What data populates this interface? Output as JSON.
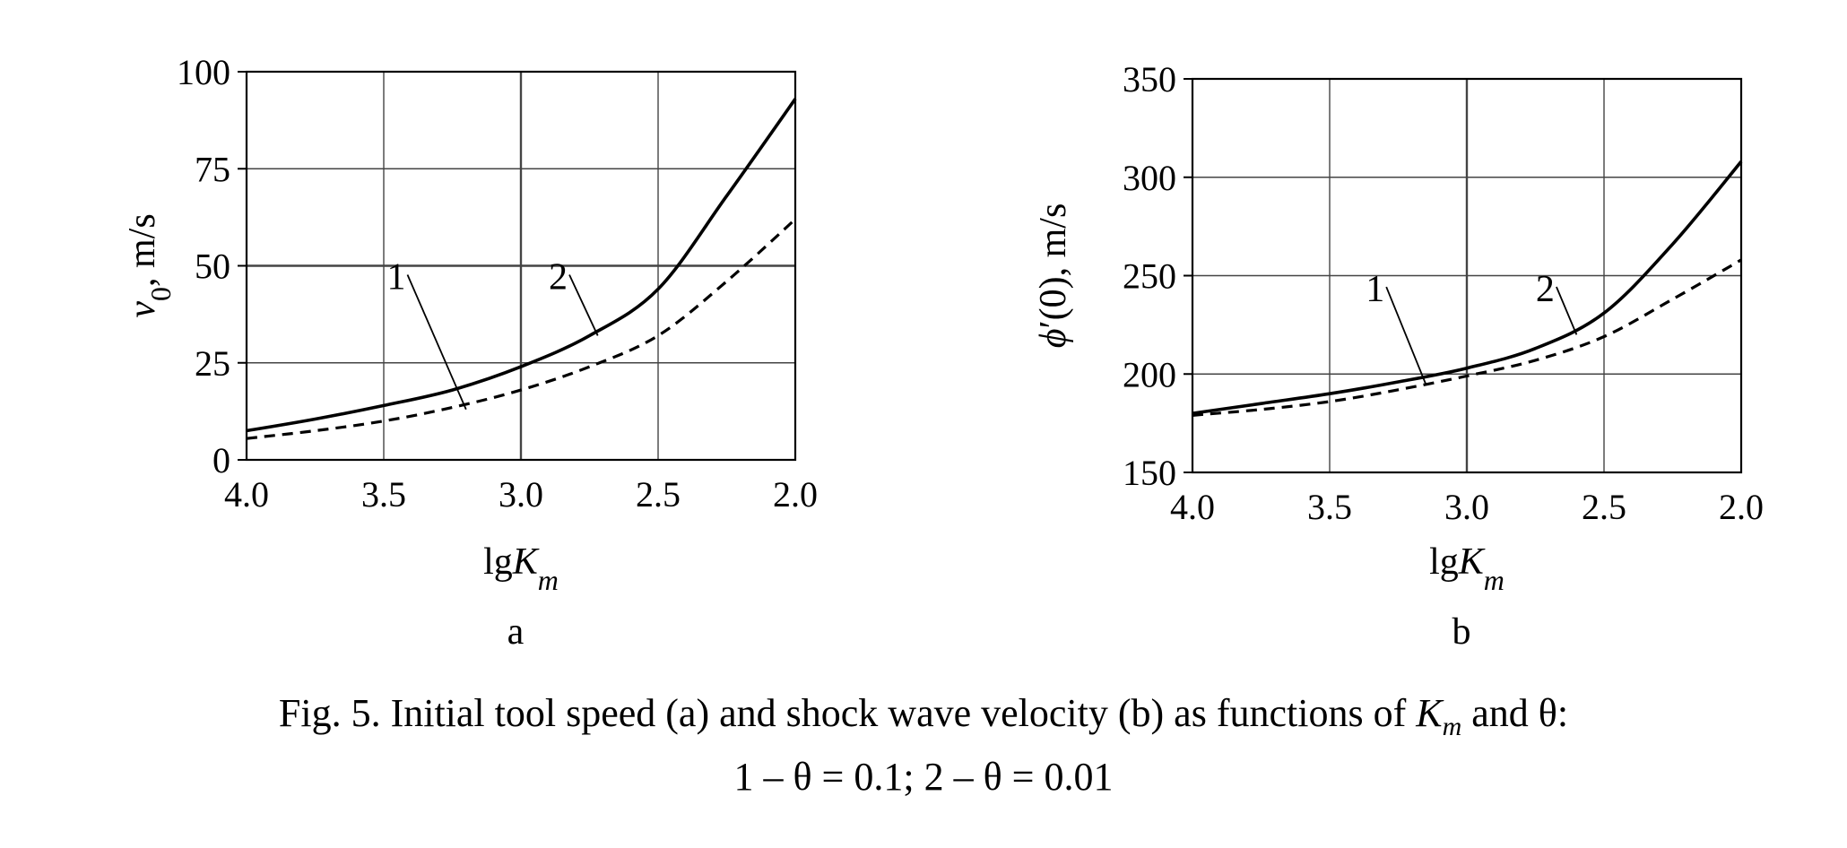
{
  "caption": {
    "line1_prefix": "Fig. 5. Initial tool speed (a) and shock wave velocity (b) as functions of ",
    "line1_var": "K",
    "line1_sub": "m",
    "line1_suffix": " and θ:",
    "line2": "1 – θ = 0.1; 2 – θ = 0.01"
  },
  "chart_data": [
    {
      "panel": "a",
      "type": "line",
      "xlabel_prefix": "lg",
      "xlabel_var": "K",
      "xlabel_sub": "m",
      "ylabel_var": "v",
      "ylabel_sub": "0",
      "ylabel_unit": ", m/s",
      "xlim": [
        4.0,
        2.0
      ],
      "x_reversed": true,
      "ylim": [
        0,
        100
      ],
      "xticks": [
        "4.0",
        "3.5",
        "3.0",
        "2.5",
        "2.0"
      ],
      "yticks": [
        "0",
        "25",
        "50",
        "75",
        "100"
      ],
      "grid": true,
      "series": [
        {
          "label": "2",
          "style": "solid",
          "x": [
            4.0,
            3.75,
            3.5,
            3.25,
            3.0,
            2.75,
            2.5,
            2.25,
            2.0
          ],
          "y": [
            7.5,
            10.5,
            14.0,
            18.0,
            24.0,
            32.0,
            44.0,
            68.0,
            93.0
          ]
        },
        {
          "label": "1",
          "style": "dashed",
          "x": [
            4.0,
            3.75,
            3.5,
            3.25,
            3.0,
            2.75,
            2.5,
            2.25,
            2.0
          ],
          "y": [
            5.5,
            7.5,
            10.0,
            13.5,
            18.0,
            24.0,
            32.0,
            46.0,
            62.0
          ]
        }
      ],
      "annotations": [
        {
          "text": "1",
          "x": 3.42,
          "y": 44,
          "to_x": 3.2,
          "to_y": 13
        },
        {
          "text": "2",
          "x": 2.83,
          "y": 44,
          "to_x": 2.72,
          "to_y": 32
        }
      ],
      "panel_label": "a"
    },
    {
      "panel": "b",
      "type": "line",
      "xlabel_prefix": "lg",
      "xlabel_var": "K",
      "xlabel_sub": "m",
      "ylabel_var": "ϕ",
      "ylabel_rest": "′(0), m/s",
      "xlim": [
        4.0,
        2.0
      ],
      "x_reversed": true,
      "ylim": [
        150,
        350
      ],
      "xticks": [
        "4.0",
        "3.5",
        "3.0",
        "2.5",
        "2.0"
      ],
      "yticks": [
        "150",
        "200",
        "250",
        "300",
        "350"
      ],
      "grid": true,
      "series": [
        {
          "label": "2",
          "style": "solid",
          "x": [
            4.0,
            3.75,
            3.5,
            3.25,
            3.0,
            2.75,
            2.5,
            2.25,
            2.0
          ],
          "y": [
            180,
            185,
            190,
            196,
            203,
            213,
            231,
            266,
            308
          ]
        },
        {
          "label": "1",
          "style": "dashed",
          "x": [
            4.0,
            3.75,
            3.5,
            3.25,
            3.0,
            2.75,
            2.5,
            2.25,
            2.0
          ],
          "y": [
            179,
            182,
            186,
            192,
            199,
            207,
            219,
            238,
            258
          ]
        }
      ],
      "annotations": [
        {
          "text": "1",
          "x": 3.3,
          "y": 237,
          "to_x": 3.15,
          "to_y": 195
        },
        {
          "text": "2",
          "x": 2.68,
          "y": 237,
          "to_x": 2.6,
          "to_y": 220
        }
      ],
      "panel_label": "b"
    }
  ]
}
